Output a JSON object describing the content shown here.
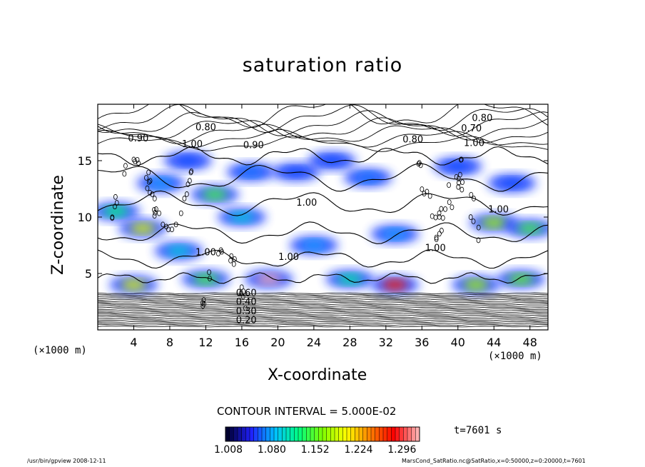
{
  "chart_data": {
    "type": "heatmap",
    "title": "saturation ratio",
    "xlabel": "X-coordinate",
    "ylabel": "Z-coordinate",
    "x_unit": "(×1000 m)",
    "x_unit_right": "(×1000 m)",
    "xlim": [
      0,
      50
    ],
    "ylim": [
      0,
      20
    ],
    "x_ticks": [
      4,
      8,
      12,
      16,
      20,
      24,
      28,
      32,
      36,
      40,
      44,
      48
    ],
    "y_ticks": [
      5,
      10,
      15
    ],
    "contour_interval": "CONTOUR INTERVAL = 5.000E-02",
    "time": "t=7601 s",
    "colorbar": {
      "min": 1.008,
      "max": 1.33,
      "ticks": [
        "1.008",
        "1.080",
        "1.152",
        "1.224",
        "1.296"
      ],
      "tick_values": [
        1.008,
        1.08,
        1.152,
        1.224,
        1.296
      ],
      "colors": [
        "#000030",
        "#2020ff",
        "#00c0ff",
        "#00ff80",
        "#80ff00",
        "#ffff00",
        "#ff8000",
        "#ff0000",
        "#ffb0b0"
      ]
    },
    "contour_labels": [
      {
        "text": "0.80",
        "x": 12,
        "z": 17.7
      },
      {
        "text": "0.90",
        "x": 17.3,
        "z": 16.1
      },
      {
        "text": "0.90",
        "x": 4.5,
        "z": 16.7
      },
      {
        "text": "1.00",
        "x": 10.5,
        "z": 16.2
      },
      {
        "text": "0.80",
        "x": 42.7,
        "z": 18.5
      },
      {
        "text": "0.70",
        "x": 41.5,
        "z": 17.6
      },
      {
        "text": "0.80",
        "x": 35,
        "z": 16.6
      },
      {
        "text": "1.00",
        "x": 41.8,
        "z": 16.3
      },
      {
        "text": "1.00",
        "x": 23.2,
        "z": 11.0
      },
      {
        "text": "1.00",
        "x": 44.5,
        "z": 10.4
      },
      {
        "text": "1.00",
        "x": 12,
        "z": 6.6
      },
      {
        "text": "1.00",
        "x": 21.2,
        "z": 6.2
      },
      {
        "text": "1.00",
        "x": 37.5,
        "z": 7.0
      },
      {
        "text": "0.20",
        "x": 16.5,
        "z": 0.6
      },
      {
        "text": "0.30",
        "x": 16.5,
        "z": 1.4
      },
      {
        "text": "0.40",
        "x": 16.5,
        "z": 2.2
      },
      {
        "text": "0.60",
        "x": 16.5,
        "z": 3.0
      }
    ],
    "saturated_regions": [
      {
        "x": 2,
        "z": 10.5,
        "value": 1.13
      },
      {
        "x": 5,
        "z": 9,
        "value": 1.2
      },
      {
        "x": 7,
        "z": 13,
        "value": 1.08
      },
      {
        "x": 10,
        "z": 15,
        "value": 1.06
      },
      {
        "x": 13,
        "z": 12,
        "value": 1.15
      },
      {
        "x": 17,
        "z": 14,
        "value": 1.07
      },
      {
        "x": 22,
        "z": 14,
        "value": 1.06
      },
      {
        "x": 26,
        "z": 15,
        "value": 1.06
      },
      {
        "x": 30,
        "z": 13.5,
        "value": 1.07
      },
      {
        "x": 40,
        "z": 14.5,
        "value": 1.06
      },
      {
        "x": 46,
        "z": 13,
        "value": 1.06
      },
      {
        "x": 44,
        "z": 9.5,
        "value": 1.18
      },
      {
        "x": 48,
        "z": 9,
        "value": 1.15
      },
      {
        "x": 9,
        "z": 7,
        "value": 1.1
      },
      {
        "x": 16,
        "z": 10,
        "value": 1.1
      },
      {
        "x": 24,
        "z": 7.5,
        "value": 1.08
      },
      {
        "x": 33,
        "z": 8.5,
        "value": 1.08
      },
      {
        "x": 4,
        "z": 4,
        "value": 1.2
      },
      {
        "x": 12,
        "z": 4.5,
        "value": 1.15
      },
      {
        "x": 19,
        "z": 4.5,
        "value": 1.33
      },
      {
        "x": 28,
        "z": 4.5,
        "value": 1.12
      },
      {
        "x": 33,
        "z": 4,
        "value": 1.28
      },
      {
        "x": 42,
        "z": 4,
        "value": 1.18
      },
      {
        "x": 47,
        "z": 4.5,
        "value": 1.16
      }
    ]
  },
  "footer": {
    "left": "/usr/bin/gpview  2008-12-11",
    "right": "MarsCond_SatRatio.nc@SatRatio,x=0:50000,z=0:20000,t=7601"
  }
}
